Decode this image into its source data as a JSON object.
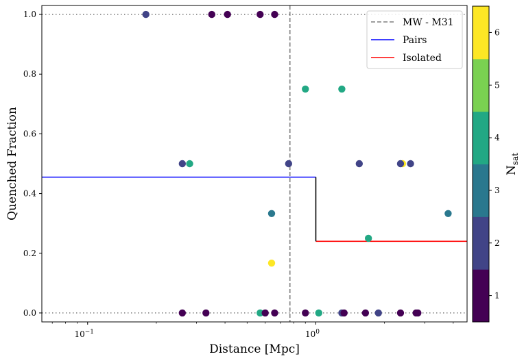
{
  "chart_data": {
    "type": "scatter",
    "xscale": "log",
    "xlim": [
      0.063,
      4.6
    ],
    "ylim": [
      -0.03,
      1.03
    ],
    "xlabel": "Distance [Mpc]",
    "ylabel": "Quenched Fraction",
    "xticks": [
      {
        "value": 0.1,
        "label": "10",
        "sup": "−1"
      },
      {
        "value": 1.0,
        "label": "10",
        "sup": "0"
      }
    ],
    "yticks": [
      0.0,
      0.2,
      0.4,
      0.6,
      0.8,
      1.0
    ],
    "ytick_labels": [
      "0.0",
      "0.2",
      "0.4",
      "0.6",
      "0.8",
      "1.0"
    ],
    "grid": false,
    "reference_lines": [
      {
        "orientation": "horizontal",
        "y": 1.0,
        "style": "dotted",
        "color": "#7f7f7f"
      },
      {
        "orientation": "horizontal",
        "y": 0.0,
        "style": "dotted",
        "color": "#7f7f7f"
      }
    ],
    "vline": {
      "name": "MW - M31",
      "x": 0.77,
      "style": "dashed",
      "color": "#7f7f7f"
    },
    "step_lines": [
      {
        "name": "Pairs",
        "color": "#0000ff",
        "x0": 0.063,
        "x1": 1.0,
        "y": 0.455
      },
      {
        "name": "Isolated",
        "color": "#ff0000",
        "x0": 1.0,
        "x1": 4.6,
        "y": 0.24
      }
    ],
    "step_connector": {
      "x": 1.0,
      "y0": 0.24,
      "y1": 0.455,
      "color": "#000000"
    },
    "legend": {
      "position": "top-right",
      "entries": [
        {
          "label": "MW - M31",
          "style": "dashed",
          "color": "#7f7f7f"
        },
        {
          "label": "Pairs",
          "style": "solid",
          "color": "#0000ff"
        },
        {
          "label": "Isolated",
          "style": "solid",
          "color": "#ff0000"
        }
      ]
    },
    "colorbar": {
      "label": "N",
      "label_sub": "sat",
      "ticks": [
        1,
        2,
        3,
        4,
        5,
        6
      ],
      "levels": [
        {
          "n": 1,
          "color": "#440154"
        },
        {
          "n": 2,
          "color": "#414487"
        },
        {
          "n": 3,
          "color": "#2a788e"
        },
        {
          "n": 4,
          "color": "#22a884"
        },
        {
          "n": 5,
          "color": "#7ad151"
        },
        {
          "n": 6,
          "color": "#fde725"
        }
      ]
    },
    "points": [
      {
        "x": 0.18,
        "y": 1.0,
        "n": 2
      },
      {
        "x": 0.35,
        "y": 1.0,
        "n": 1
      },
      {
        "x": 0.41,
        "y": 1.0,
        "n": 1
      },
      {
        "x": 0.57,
        "y": 1.0,
        "n": 1
      },
      {
        "x": 0.66,
        "y": 1.0,
        "n": 1
      },
      {
        "x": 0.26,
        "y": 0.5,
        "n": 2
      },
      {
        "x": 0.28,
        "y": 0.5,
        "n": 4
      },
      {
        "x": 0.76,
        "y": 0.5,
        "n": 2
      },
      {
        "x": 1.55,
        "y": 0.5,
        "n": 2
      },
      {
        "x": 2.4,
        "y": 0.5,
        "n": 6
      },
      {
        "x": 2.35,
        "y": 0.5,
        "n": 2
      },
      {
        "x": 2.6,
        "y": 0.5,
        "n": 2
      },
      {
        "x": 0.9,
        "y": 0.75,
        "n": 4
      },
      {
        "x": 1.3,
        "y": 0.75,
        "n": 4
      },
      {
        "x": 0.64,
        "y": 0.333,
        "n": 3
      },
      {
        "x": 3.8,
        "y": 0.333,
        "n": 3
      },
      {
        "x": 1.7,
        "y": 0.25,
        "n": 4
      },
      {
        "x": 0.64,
        "y": 0.167,
        "n": 6
      },
      {
        "x": 0.26,
        "y": 0.0,
        "n": 1
      },
      {
        "x": 0.33,
        "y": 0.0,
        "n": 1
      },
      {
        "x": 0.57,
        "y": 0.0,
        "n": 4
      },
      {
        "x": 0.6,
        "y": 0.0,
        "n": 1
      },
      {
        "x": 0.66,
        "y": 0.0,
        "n": 1
      },
      {
        "x": 0.9,
        "y": 0.0,
        "n": 1
      },
      {
        "x": 1.03,
        "y": 0.0,
        "n": 4
      },
      {
        "x": 1.3,
        "y": 0.0,
        "n": 2
      },
      {
        "x": 1.33,
        "y": 0.0,
        "n": 1
      },
      {
        "x": 1.65,
        "y": 0.0,
        "n": 1
      },
      {
        "x": 1.88,
        "y": 0.0,
        "n": 2
      },
      {
        "x": 2.35,
        "y": 0.0,
        "n": 1
      },
      {
        "x": 2.75,
        "y": 0.0,
        "n": 1
      },
      {
        "x": 2.8,
        "y": 0.0,
        "n": 1
      }
    ]
  }
}
